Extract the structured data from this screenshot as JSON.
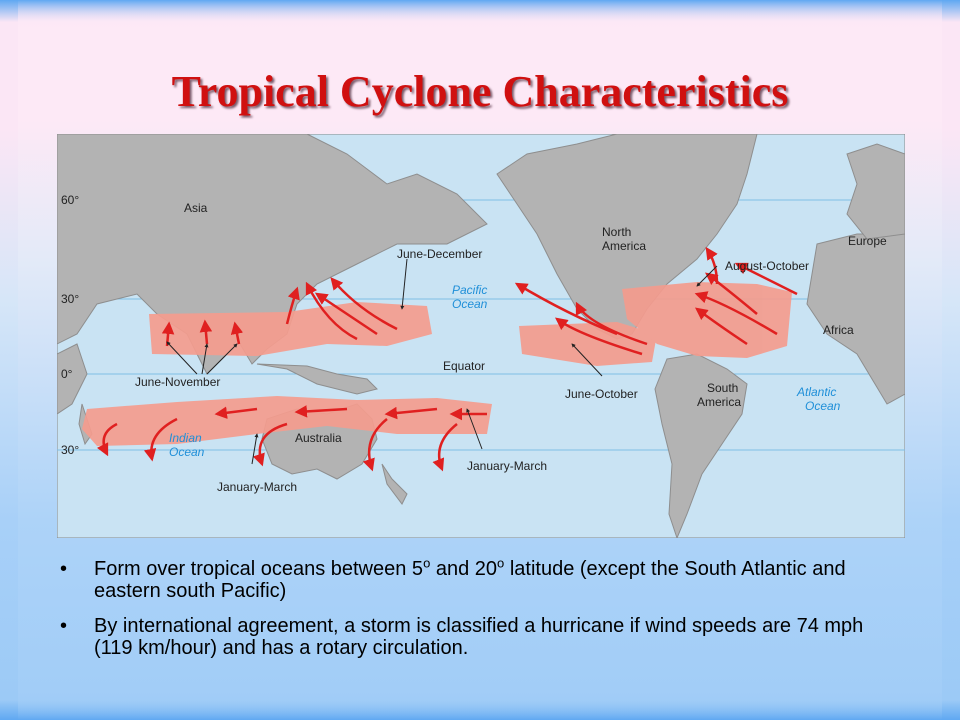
{
  "title": "Tropical Cyclone Characteristics",
  "map": {
    "latitudes": [
      "60°",
      "30°",
      "0°",
      "30°"
    ],
    "continents": [
      "Asia",
      "North America",
      "Europe",
      "Africa",
      "South America",
      "Australia"
    ],
    "oceans": [
      "Pacific Ocean",
      "Atlantic Ocean",
      "Indian Ocean"
    ],
    "equator": "Equator",
    "seasons": [
      "June-December",
      "August-October",
      "June-November",
      "June-October",
      "January-March",
      "January-March"
    ]
  },
  "bullets": [
    [
      "Form over tropical oceans between 5",
      "o",
      " and 20",
      "o",
      " latitude (except the South Atlantic and eastern south Pacific)"
    ],
    [
      "By international agreement, a storm is classified a hurricane if wind speeds are 74 mph (119 km/hour) and has a rotary circulation."
    ]
  ]
}
